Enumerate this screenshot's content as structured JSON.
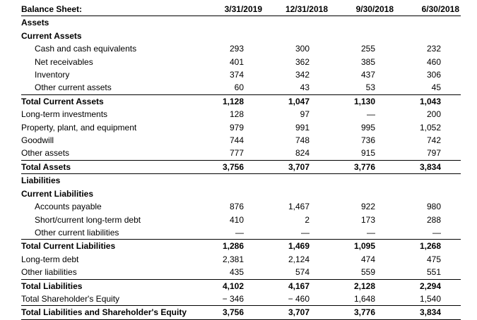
{
  "document": {
    "title": "Balance Sheet:",
    "columns": [
      "3/31/2019",
      "12/31/2018",
      "9/30/2018",
      "6/30/2018"
    ],
    "rows": [
      {
        "label": "Assets",
        "values": [],
        "bold": true
      },
      {
        "label": "Current Assets",
        "values": [],
        "bold": true
      },
      {
        "label": "Cash and cash equivalents",
        "values": [
          "293",
          "300",
          "255",
          "232"
        ],
        "indent": true
      },
      {
        "label": "Net receivables",
        "values": [
          "401",
          "362",
          "385",
          "460"
        ],
        "indent": true
      },
      {
        "label": "Inventory",
        "values": [
          "374",
          "342",
          "437",
          "306"
        ],
        "indent": true
      },
      {
        "label": "Other current assets",
        "values": [
          "60",
          "43",
          "53",
          "45"
        ],
        "indent": true
      },
      {
        "label": "Total Current Assets",
        "values": [
          "1,128",
          "1,047",
          "1,130",
          "1,043"
        ],
        "bold": true,
        "rule_above": true
      },
      {
        "label": "Long-term investments",
        "values": [
          "128",
          "97",
          "—",
          "200"
        ]
      },
      {
        "label": "Property, plant, and equipment",
        "values": [
          "979",
          "991",
          "995",
          "1,052"
        ]
      },
      {
        "label": "Goodwill",
        "values": [
          "744",
          "748",
          "736",
          "742"
        ]
      },
      {
        "label": "Other assets",
        "values": [
          "777",
          "824",
          "915",
          "797"
        ]
      },
      {
        "label": "Total Assets",
        "values": [
          "3,756",
          "3,707",
          "3,776",
          "3,834"
        ],
        "bold": true,
        "rule_above": true,
        "rule_below": true
      },
      {
        "label": "Liabilities",
        "values": [],
        "bold": true
      },
      {
        "label": "Current Liabilities",
        "values": [],
        "bold": true
      },
      {
        "label": "Accounts payable",
        "values": [
          "876",
          "1,467",
          "922",
          "980"
        ],
        "indent": true
      },
      {
        "label": "Short/current long-term debt",
        "values": [
          "410",
          "2",
          "173",
          "288"
        ],
        "indent": true
      },
      {
        "label": "Other current liabilities",
        "values": [
          "—",
          "—",
          "—",
          "—"
        ],
        "indent": true
      },
      {
        "label": "Total Current Liabilities",
        "values": [
          "1,286",
          "1,469",
          "1,095",
          "1,268"
        ],
        "bold": true,
        "rule_above": true
      },
      {
        "label": "Long-term debt",
        "values": [
          "2,381",
          "2,124",
          "474",
          "475"
        ]
      },
      {
        "label": "Other liabilities",
        "values": [
          "435",
          "574",
          "559",
          "551"
        ]
      },
      {
        "label": "Total Liabilities",
        "values": [
          "4,102",
          "4,167",
          "2,128",
          "2,294"
        ],
        "bold": true,
        "rule_above": true
      },
      {
        "label": "Total Shareholder's Equity",
        "values": [
          "− 346",
          "− 460",
          "1,648",
          "1,540"
        ]
      },
      {
        "label": "Total Liabilities and Shareholder's Equity",
        "values": [
          "3,756",
          "3,707",
          "3,776",
          "3,834"
        ],
        "bold": true,
        "rule_above": true,
        "rule_below": true
      }
    ]
  }
}
